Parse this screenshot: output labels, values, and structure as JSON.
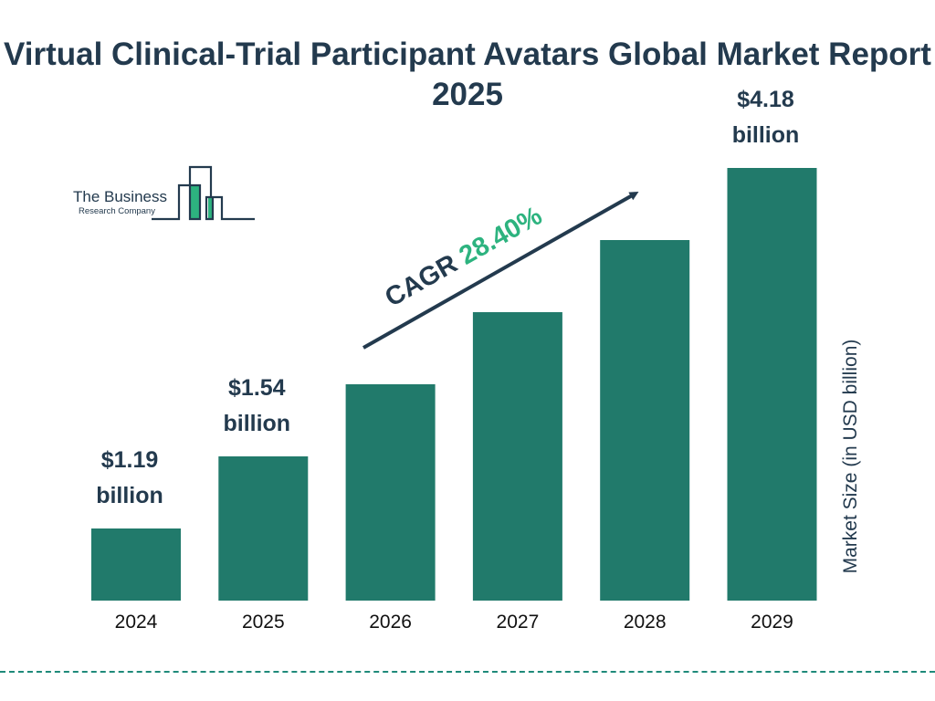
{
  "chart_data": {
    "type": "bar",
    "title": "Virtual Clinical-Trial Participant Avatars Global Market Report 2025",
    "categories": [
      "2024",
      "2025",
      "2026",
      "2027",
      "2028",
      "2029"
    ],
    "values": [
      1.19,
      1.54,
      1.98,
      2.54,
      3.26,
      4.18
    ],
    "data_labels": [
      {
        "category": "2024",
        "value": "$1.19",
        "unit": "billion"
      },
      {
        "category": "2025",
        "value": "$1.54",
        "unit": "billion"
      },
      {
        "category": "2029",
        "value": "$4.18",
        "unit": "billion"
      }
    ],
    "xlabel": "",
    "ylabel": "Market Size (in USD billion)",
    "grid": false,
    "bar_color": "#217a6b",
    "annotation": {
      "label": "CAGR",
      "value": "28.40%",
      "value_color": "#2db37f"
    }
  },
  "logo": {
    "line1": "The Business",
    "line2": "Research Company"
  },
  "colors": {
    "title": "#233a4e",
    "bar": "#217a6b",
    "accent": "#2db37f",
    "divider": "#1f8a7a"
  }
}
